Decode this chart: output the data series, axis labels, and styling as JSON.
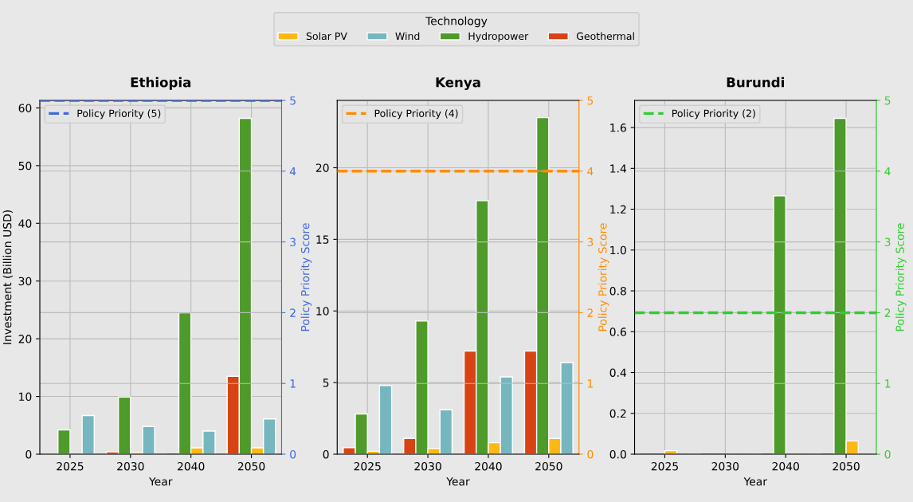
{
  "chart_data": [
    {
      "type": "bar",
      "title": "Ethiopia",
      "xlabel": "Year",
      "ylabel": "Investment (Billion USD)",
      "y2label": "Policy Priority Score",
      "legend_title": "Technology",
      "legend": "top",
      "categories": [
        "2025",
        "2030",
        "2040",
        "2050"
      ],
      "series": [
        {
          "name": "Geothermal",
          "color": "#d84315",
          "values": [
            null,
            0.4,
            0,
            13.5
          ]
        },
        {
          "name": "Hydropower",
          "color": "#4e9a2a",
          "values": [
            4.2,
            9.9,
            24.5,
            58.2
          ]
        },
        {
          "name": "Solar PV",
          "color": "#fdb813",
          "values": [
            null,
            0.3,
            1.1,
            1.1
          ]
        },
        {
          "name": "Wind",
          "color": "#76b7bf",
          "values": [
            6.7,
            4.8,
            4.0,
            6.1
          ]
        }
      ],
      "ylim": [
        0,
        61.3
      ],
      "yticks": [
        0,
        10,
        20,
        30,
        40,
        50,
        60
      ],
      "y2lim": [
        0,
        5
      ],
      "y2ticks": [
        0,
        1,
        2,
        3,
        4,
        5
      ],
      "ref_lines": [
        {
          "axis": "y2",
          "value": 5,
          "label": "Policy Priority (5)",
          "color": "#4169e1",
          "line_style": "dashed"
        }
      ],
      "grid": true
    },
    {
      "type": "bar",
      "title": "Kenya",
      "xlabel": "Year",
      "y2label": "Policy Priority Score",
      "categories": [
        "2025",
        "2030",
        "2040",
        "2050"
      ],
      "series": [
        {
          "name": "Geothermal",
          "color": "#d84315",
          "values": [
            0.45,
            1.1,
            7.2,
            7.2
          ]
        },
        {
          "name": "Hydropower",
          "color": "#4e9a2a",
          "values": [
            2.8,
            9.3,
            17.7,
            23.5
          ]
        },
        {
          "name": "Solar PV",
          "color": "#fdb813",
          "values": [
            0.2,
            0.4,
            0.8,
            1.1
          ]
        },
        {
          "name": "Wind",
          "color": "#76b7bf",
          "values": [
            4.8,
            3.1,
            5.4,
            6.4
          ]
        }
      ],
      "ylim": [
        0,
        24.7
      ],
      "yticks": [
        0,
        5,
        10,
        15,
        20
      ],
      "y2lim": [
        0,
        5
      ],
      "y2ticks": [
        0,
        1,
        2,
        3,
        4,
        5
      ],
      "ref_lines": [
        {
          "axis": "y2",
          "value": 4,
          "label": "Policy Priority (4)",
          "color": "#ff8c00",
          "line_style": "dashed"
        }
      ],
      "grid": true
    },
    {
      "type": "bar",
      "title": "Burundi",
      "xlabel": "Year",
      "y2label": "Policy Priority Score",
      "categories": [
        "2025",
        "2030",
        "2040",
        "2050"
      ],
      "series": [
        {
          "name": "Geothermal",
          "color": "#d84315",
          "values": [
            0,
            0,
            0,
            0
          ]
        },
        {
          "name": "Hydropower",
          "color": "#4e9a2a",
          "values": [
            0,
            0,
            1.265,
            1.645
          ]
        },
        {
          "name": "Solar PV",
          "color": "#fdb813",
          "values": [
            0.017,
            0,
            0,
            0.065
          ]
        },
        {
          "name": "Wind",
          "color": "#76b7bf",
          "values": [
            0,
            0,
            0,
            0
          ]
        }
      ],
      "ylim": [
        0,
        1.733
      ],
      "yticks": [
        {
          "value": 0,
          "label": "0.0"
        },
        {
          "value": 0.2,
          "label": "0.2"
        },
        {
          "value": 0.4,
          "label": "0.4"
        },
        {
          "value": 0.6,
          "label": "0.6"
        },
        {
          "value": 0.8,
          "label": "0.8"
        },
        {
          "value": 1.0,
          "label": "1.0"
        },
        {
          "value": 1.2,
          "label": "1.2"
        },
        {
          "value": 1.4,
          "label": "1.4"
        },
        {
          "value": 1.6,
          "label": "1.6"
        }
      ],
      "y2lim": [
        0,
        5
      ],
      "y2ticks": [
        0,
        1,
        2,
        3,
        4,
        5
      ],
      "ref_lines": [
        {
          "axis": "y2",
          "value": 2,
          "label": "Policy Priority (2)",
          "color": "#32cd32",
          "line_style": "dashed"
        }
      ],
      "grid": true
    }
  ]
}
